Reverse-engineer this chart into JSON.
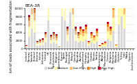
{
  "title": "EEA-38",
  "ylabel": "km of roads associated with fragmentation pressure",
  "categories": [
    "Iceland",
    "Norway",
    "Sweden",
    "Finland",
    "Estonia",
    "Latvia",
    "Lithuania",
    "Ireland",
    "UK",
    "Denmark",
    "Netherlands",
    "Belgium",
    "Luxembourg",
    "France",
    "Spain",
    "Portugal",
    "Germany",
    "Poland",
    "Czechia",
    "Slovakia",
    "Austria",
    "Switzerland",
    "Hungary",
    "Slovenia",
    "Croatia",
    "Bosnia",
    "Serbia",
    "Montenegro",
    "Albania",
    "N. Macedonia",
    "Greece",
    "Bulgaria",
    "Romania",
    "Moldova",
    "Ukraine",
    "Turkey",
    "Italy",
    "Malta",
    "Cyprus",
    "Liechtenstein"
  ],
  "colors": [
    "#d9d9d9",
    "#fffaaa",
    "#fdbf6f",
    "#e88020",
    "#c8002a"
  ],
  "legend_labels": [
    "Low",
    "Medium",
    "Low-High",
    "High",
    "Very High"
  ],
  "data": [
    [
      400,
      200,
      100,
      80,
      60
    ],
    [
      3000,
      2500,
      1500,
      800,
      600
    ],
    [
      5000,
      3500,
      2000,
      1200,
      800
    ],
    [
      4000,
      3000,
      1800,
      1000,
      700
    ],
    [
      700,
      500,
      300,
      200,
      150
    ],
    [
      800,
      600,
      400,
      250,
      180
    ],
    [
      900,
      700,
      450,
      280,
      200
    ],
    [
      1500,
      1200,
      700,
      400,
      300
    ],
    [
      7000,
      4000,
      2500,
      1500,
      1200
    ],
    [
      1200,
      900,
      600,
      400,
      300
    ],
    [
      1500,
      1000,
      700,
      500,
      400
    ],
    [
      1200,
      900,
      600,
      500,
      400
    ],
    [
      200,
      150,
      100,
      80,
      60
    ],
    [
      8000,
      5000,
      3000,
      1800,
      1400
    ],
    [
      7000,
      4500,
      2800,
      1600,
      1200
    ],
    [
      2000,
      1500,
      900,
      600,
      450
    ],
    [
      9000,
      5500,
      3500,
      2000,
      1500
    ],
    [
      5000,
      3500,
      2200,
      1400,
      1000
    ],
    [
      2000,
      1500,
      900,
      600,
      450
    ],
    [
      1500,
      1100,
      700,
      450,
      350
    ],
    [
      2000,
      1500,
      900,
      600,
      450
    ],
    [
      1800,
      1300,
      800,
      500,
      400
    ],
    [
      2200,
      1600,
      1000,
      650,
      500
    ],
    [
      700,
      500,
      320,
      200,
      160
    ],
    [
      1500,
      1100,
      700,
      450,
      350
    ],
    [
      1200,
      900,
      600,
      380,
      280
    ],
    [
      1800,
      1300,
      850,
      550,
      400
    ],
    [
      300,
      220,
      140,
      90,
      70
    ],
    [
      500,
      380,
      240,
      160,
      120
    ],
    [
      600,
      450,
      290,
      190,
      140
    ],
    [
      2500,
      1800,
      1100,
      700,
      550
    ],
    [
      2000,
      1500,
      900,
      600,
      450
    ],
    [
      4500,
      3200,
      2000,
      1300,
      1000
    ],
    [
      400,
      300,
      190,
      130,
      100
    ],
    [
      6000,
      4000,
      2500,
      1600,
      1200
    ],
    [
      8000,
      5000,
      3200,
      2000,
      1500
    ],
    [
      5000,
      3500,
      2200,
      1400,
      1100
    ],
    [
      30,
      20,
      15,
      10,
      8
    ],
    [
      100,
      80,
      55,
      38,
      28
    ],
    [
      50,
      35,
      22,
      15,
      10
    ]
  ],
  "ylim": [
    0,
    10000
  ],
  "yticks": [
    0,
    2000,
    4000,
    6000,
    8000,
    10000
  ],
  "yticklabels": [
    "0",
    "2000",
    "4000",
    "6000",
    "8000",
    "10000"
  ],
  "title_fontsize": 4.5,
  "label_fontsize": 3.5,
  "tick_fontsize": 3.0
}
